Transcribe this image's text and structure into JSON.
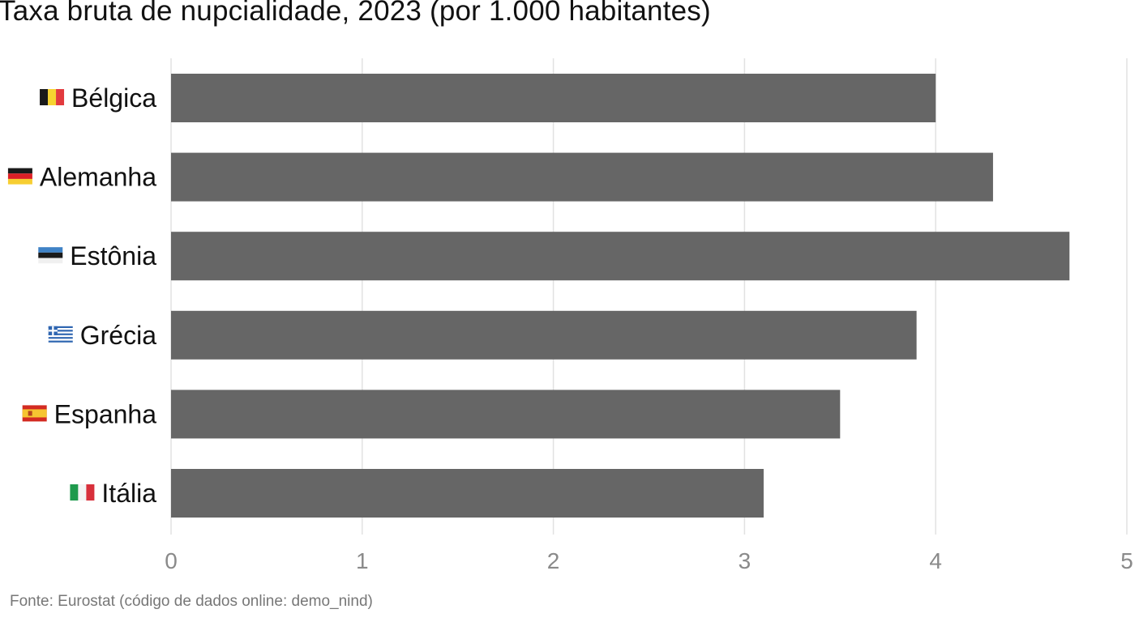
{
  "chart_data": {
    "type": "bar",
    "orientation": "horizontal",
    "title": "Taxa bruta de nupcialidade, 2023 (por 1.000 habitantes)",
    "categories": [
      "Bélgica",
      "Alemanha",
      "Estônia",
      "Grécia",
      "Espanha",
      "Itália"
    ],
    "flags": [
      "flag-belgium-icon",
      "flag-germany-icon",
      "flag-estonia-icon",
      "flag-greece-icon",
      "flag-spain-icon",
      "flag-italy-icon"
    ],
    "values": [
      4.0,
      4.3,
      4.7,
      3.9,
      3.5,
      3.1
    ],
    "xlim": [
      0,
      5
    ],
    "xticks": [
      0,
      1,
      2,
      3,
      4,
      5
    ],
    "tick_labels": [
      "0",
      "1",
      "2",
      "3",
      "4",
      "5"
    ],
    "grid": true,
    "bar_color": "#666666",
    "grid_color": "#e2e2e2",
    "source": "Fonte: Eurostat (código de dados online: demo_nind)"
  }
}
